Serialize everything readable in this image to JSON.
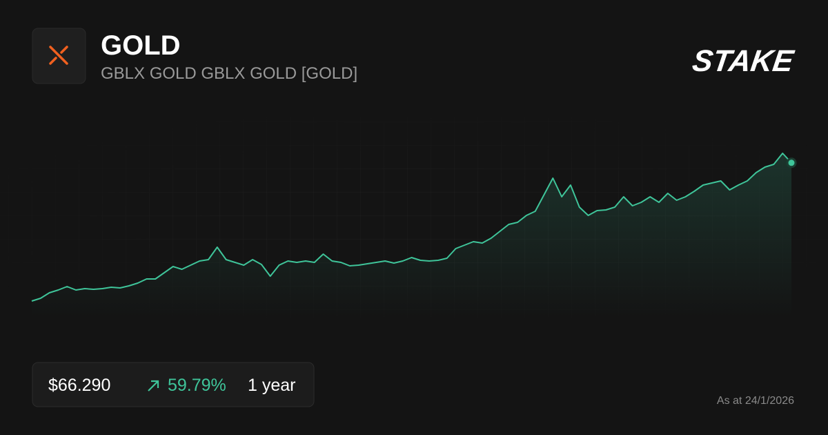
{
  "header": {
    "title": "GOLD",
    "subtitle": "GBLX GOLD GBLX GOLD [GOLD]",
    "brand": "STAKE"
  },
  "summary": {
    "price": "$66.290",
    "change": "59.79%",
    "period": "1 year"
  },
  "footer": {
    "as_at": "As at 24/1/2026"
  },
  "chart_data": {
    "type": "line",
    "color": "#3fc59a",
    "ylim": [
      41,
      73.2
    ],
    "values": [
      41.5,
      41.99,
      42.98,
      43.48,
      44.1,
      43.48,
      43.72,
      43.6,
      43.72,
      43.97,
      43.85,
      44.22,
      44.72,
      45.46,
      45.46,
      46.57,
      47.69,
      47.19,
      47.94,
      48.68,
      48.93,
      51.16,
      48.93,
      48.43,
      47.94,
      48.93,
      48.06,
      45.95,
      47.94,
      48.68,
      48.43,
      48.68,
      48.43,
      49.92,
      48.68,
      48.43,
      47.81,
      47.94,
      48.18,
      48.43,
      48.68,
      48.31,
      48.68,
      49.3,
      48.8,
      48.68,
      48.8,
      49.17,
      50.91,
      51.53,
      52.15,
      51.9,
      52.77,
      54.0,
      55.24,
      55.61,
      56.85,
      57.6,
      60.57,
      63.54,
      60.2,
      62.3,
      58.34,
      56.85,
      57.72,
      57.84,
      58.34,
      60.2,
      58.59,
      59.21,
      60.2,
      59.21,
      60.82,
      59.58,
      60.2,
      61.19,
      62.3,
      62.67,
      63.05,
      61.44,
      62.3,
      63.05,
      64.53,
      65.52,
      66.02,
      68.0,
      66.29
    ]
  }
}
